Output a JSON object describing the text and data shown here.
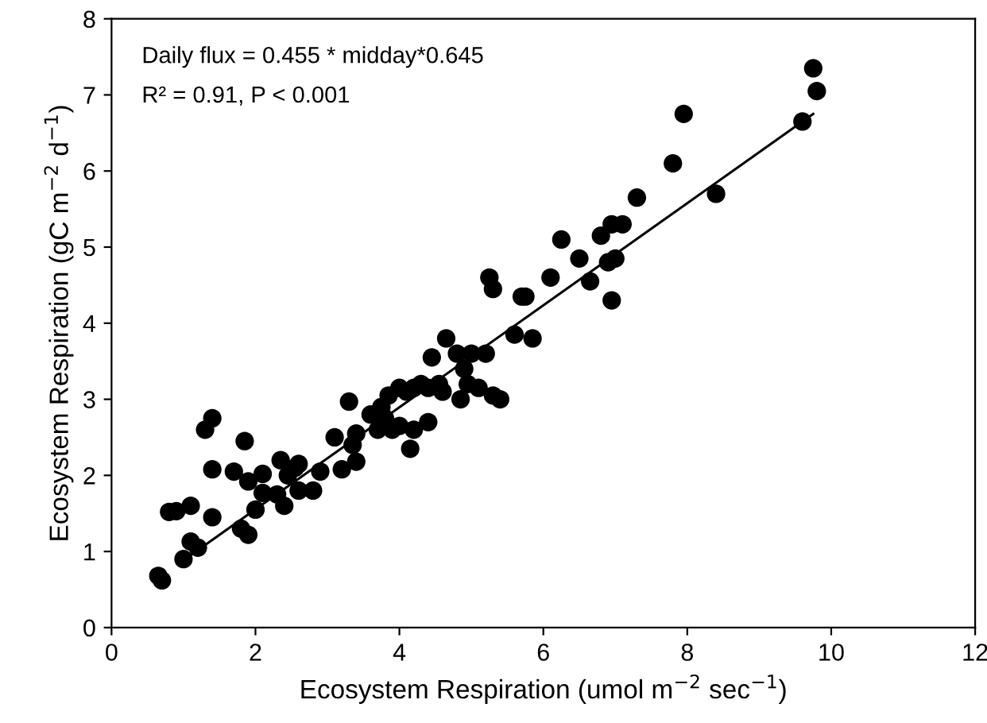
{
  "chart_data": {
    "type": "scatter",
    "xlabel": "Ecosystem Respiration (umol m$^{−2}$ sec$^{−1}$)",
    "ylabel": "Ecosystem Respiration (gC m$^{−2}$ d$^{−1}$)",
    "annotations": [
      "Daily flux = 0.455 * midday*0.645",
      "R² = 0.91, P < 0.001"
    ],
    "xlim": [
      0,
      12
    ],
    "ylim": [
      0,
      8
    ],
    "xticks": [
      0,
      2,
      4,
      6,
      8,
      10,
      12
    ],
    "yticks": [
      0,
      1,
      2,
      3,
      4,
      5,
      6,
      7,
      8
    ],
    "grid": false,
    "legend": false,
    "series": [
      {
        "color": "#000000",
        "marker": "circle",
        "x": [
          0.65,
          0.7,
          0.8,
          0.9,
          1.0,
          1.1,
          1.1,
          1.2,
          1.3,
          1.4,
          1.4,
          1.4,
          1.7,
          1.8,
          1.85,
          1.9,
          1.9,
          2.0,
          2.1,
          2.1,
          2.3,
          2.35,
          2.4,
          2.45,
          2.55,
          2.6,
          2.6,
          2.8,
          2.9,
          3.1,
          3.2,
          3.3,
          3.35,
          3.4,
          3.4,
          3.6,
          3.7,
          3.75,
          3.8,
          3.85,
          3.9,
          4.0,
          4.0,
          4.1,
          4.15,
          4.2,
          4.2,
          4.3,
          4.4,
          4.4,
          4.45,
          4.55,
          4.6,
          4.65,
          4.8,
          4.85,
          4.9,
          4.95,
          5.0,
          5.1,
          5.2,
          5.25,
          5.3,
          5.3,
          5.4,
          5.6,
          5.7,
          5.75,
          5.85,
          6.1,
          6.25,
          6.5,
          6.65,
          6.8,
          6.9,
          6.95,
          6.95,
          7.0,
          7.1,
          7.3,
          7.8,
          7.95,
          8.4,
          9.6,
          9.75,
          9.8
        ],
        "values": [
          0.68,
          0.62,
          1.52,
          1.53,
          0.9,
          1.6,
          1.13,
          1.05,
          2.6,
          2.75,
          2.08,
          1.45,
          2.05,
          1.3,
          2.45,
          1.22,
          1.92,
          1.55,
          2.02,
          1.77,
          1.75,
          2.2,
          1.6,
          2.0,
          2.1,
          2.15,
          1.8,
          1.8,
          2.05,
          2.5,
          2.08,
          2.97,
          2.4,
          2.55,
          2.18,
          2.8,
          2.6,
          2.9,
          2.75,
          3.05,
          2.6,
          3.15,
          2.65,
          3.1,
          2.35,
          2.6,
          3.15,
          3.2,
          2.7,
          3.15,
          3.55,
          3.2,
          3.1,
          3.8,
          3.6,
          3.0,
          3.4,
          3.2,
          3.6,
          3.15,
          3.6,
          4.6,
          4.45,
          3.05,
          3.0,
          3.85,
          4.35,
          4.35,
          3.8,
          4.6,
          5.1,
          4.85,
          4.55,
          5.15,
          4.8,
          4.3,
          5.3,
          4.85,
          5.3,
          5.65,
          6.1,
          6.75,
          5.7,
          6.65,
          7.35,
          7.05
        ]
      },
      {
        "type": "line",
        "color": "#000000",
        "x": [
          0.95,
          9.75
        ],
        "values": [
          0.85,
          6.75
        ]
      }
    ]
  }
}
